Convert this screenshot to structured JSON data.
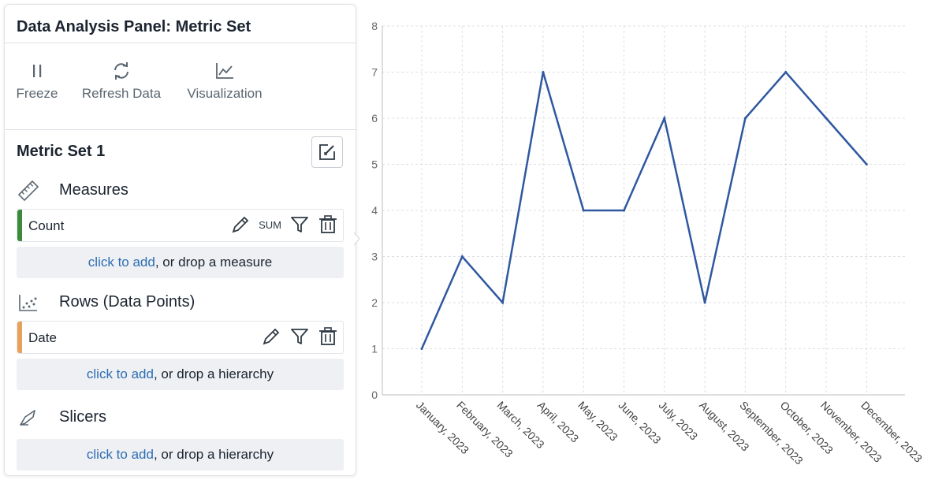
{
  "panel": {
    "title": "Data Analysis Panel: Metric Set",
    "toolbar": [
      {
        "label": "Freeze",
        "icon": "pause-icon"
      },
      {
        "label": "Refresh Data",
        "icon": "refresh-icon"
      },
      {
        "label": "Visualization",
        "icon": "line-chart-icon"
      }
    ],
    "metric_set": {
      "title": "Metric Set 1"
    },
    "sections": {
      "measures": {
        "label": "Measures",
        "field": {
          "name": "Count",
          "aggregation": "SUM",
          "color": "#3d8a3d"
        },
        "drop": {
          "link": "click to add",
          "rest": ", or drop a measure"
        }
      },
      "rows": {
        "label": "Rows (Data Points)",
        "field": {
          "name": "Date",
          "color": "#e8a15b"
        },
        "drop": {
          "link": "click to add",
          "rest": ", or drop a hierarchy"
        }
      },
      "slicers": {
        "label": "Slicers",
        "drop": {
          "link": "click to add",
          "rest": ", or drop a hierarchy"
        }
      }
    }
  },
  "chart_data": {
    "type": "line",
    "categories": [
      "January, 2023",
      "February, 2023",
      "March, 2023",
      "April, 2023",
      "May, 2023",
      "June, 2023",
      "July, 2023",
      "August, 2023",
      "September, 2023",
      "October, 2023",
      "November, 2023",
      "December, 2023"
    ],
    "values": [
      1,
      3,
      2,
      7,
      4,
      4,
      6,
      2,
      6,
      7,
      6,
      5
    ],
    "ylim": [
      0,
      8
    ],
    "yticks": [
      "0",
      "1",
      "2",
      "3",
      "4",
      "5",
      "6",
      "7",
      "8"
    ],
    "line_color": "#2f58a0",
    "grid": true,
    "title": "",
    "xlabel": "",
    "ylabel": ""
  }
}
